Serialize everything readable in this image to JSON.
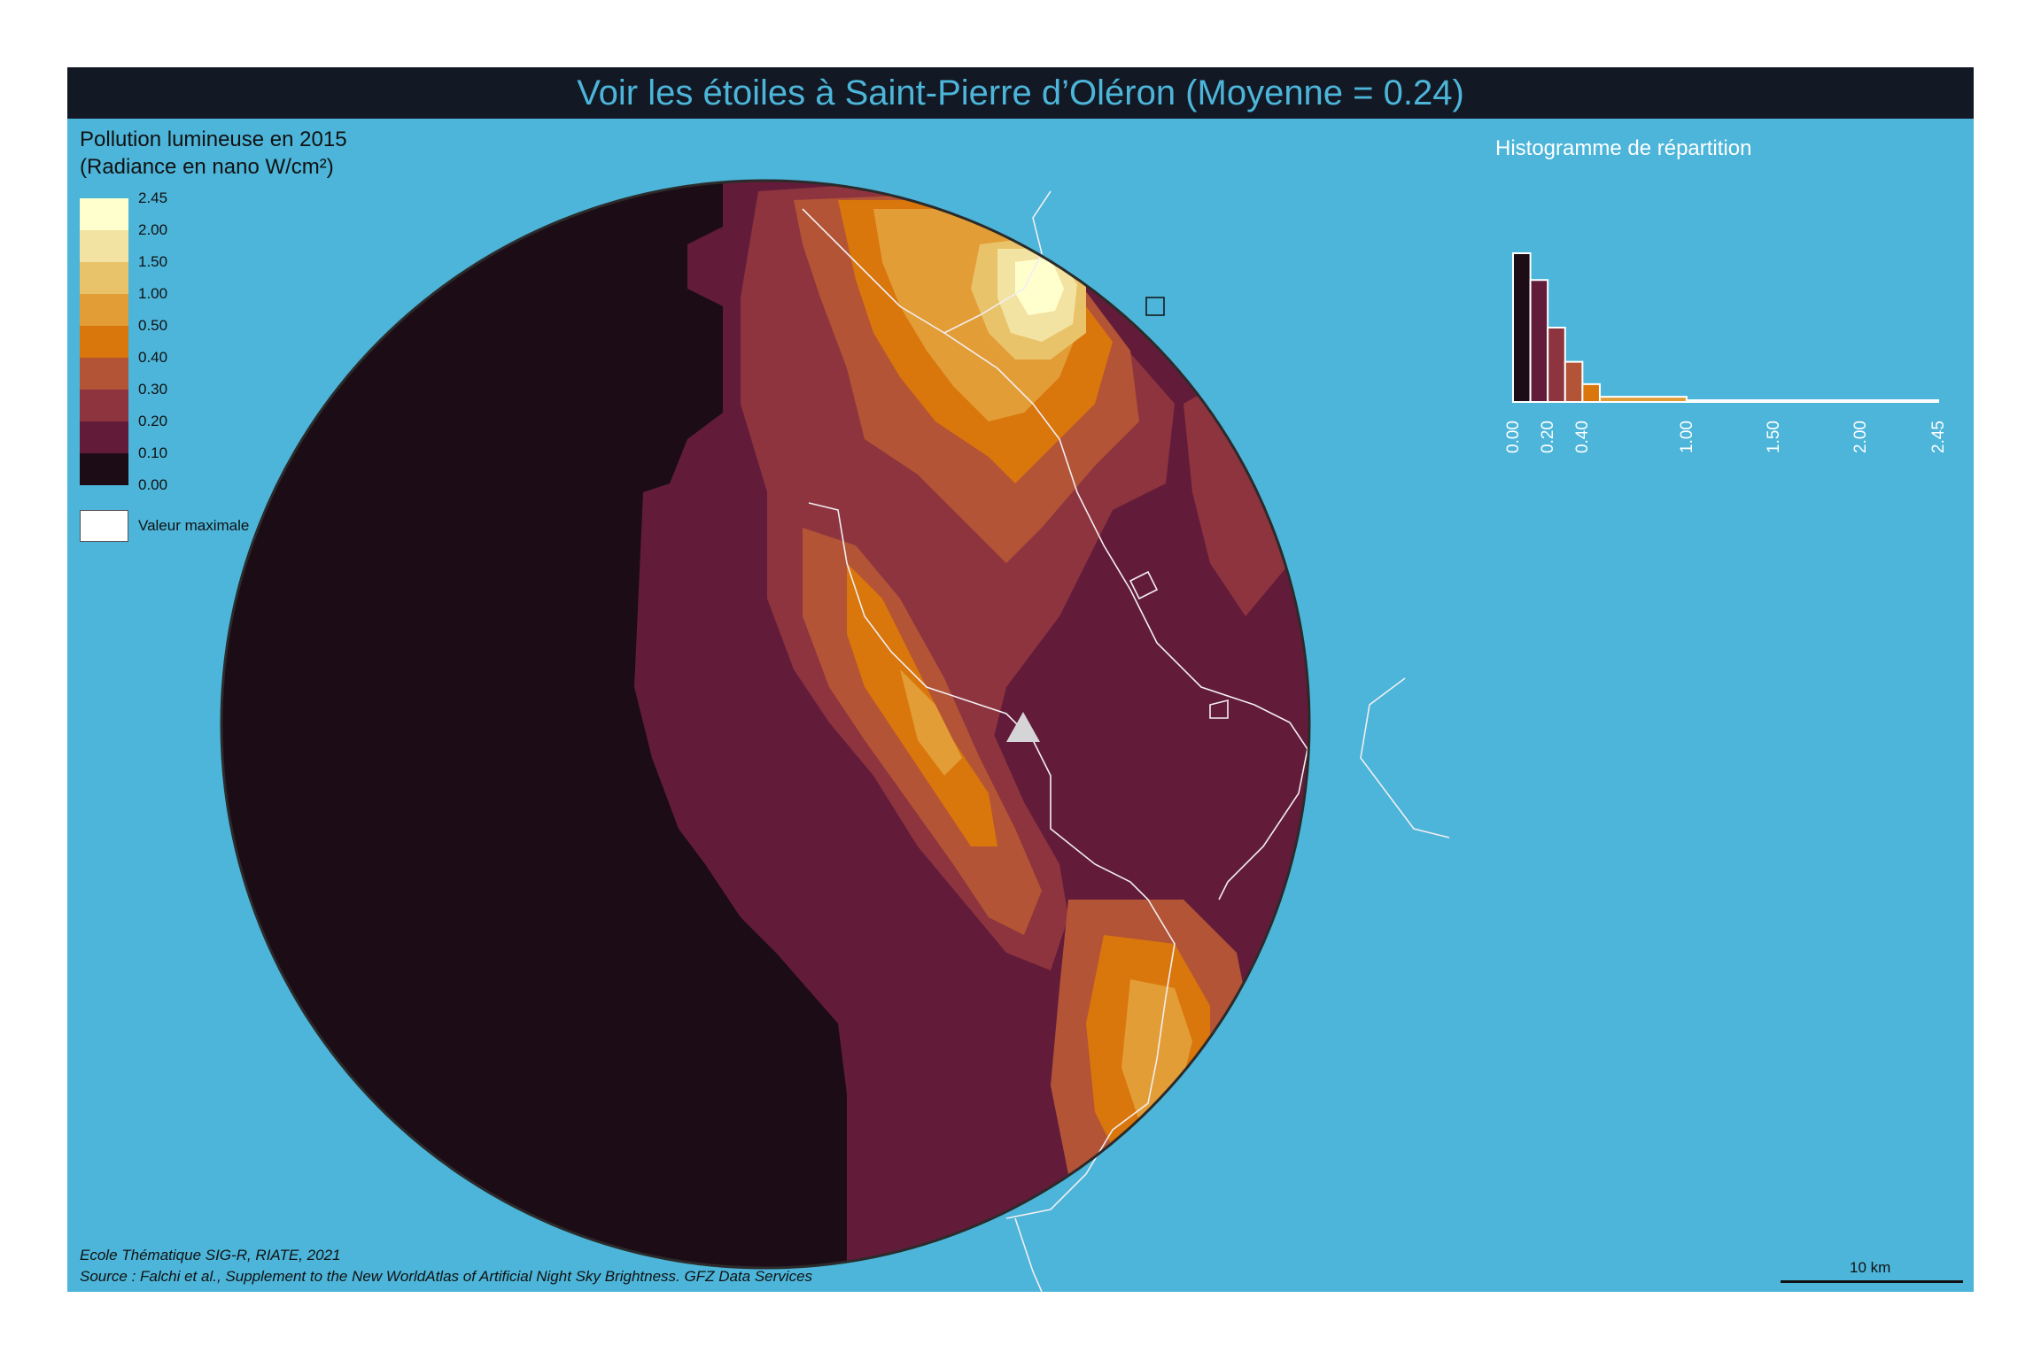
{
  "title": "Voir les étoiles à Saint-Pierre d’Oléron (Moyenne = 0.24)",
  "legend": {
    "title_line1": "Pollution lumineuse en 2015",
    "title_line2": "(Radiance en nano W/cm²)",
    "breaks": [
      "2.45",
      "2.00",
      "1.50",
      "1.00",
      "0.50",
      "0.40",
      "0.30",
      "0.20",
      "0.10",
      "0.00"
    ],
    "colors": [
      "#ffffce",
      "#f3e3a3",
      "#e9c36a",
      "#e39d36",
      "#d9760c",
      "#b35436",
      "#8e343f",
      "#621c3a",
      "#1c0c15"
    ],
    "max_label": "Valeur maximale"
  },
  "histogram": {
    "title": "Histogramme de répartition",
    "ticks": [
      "0.00",
      "0.20",
      "0.40",
      "1.00",
      "1.50",
      "2.00",
      "2.45"
    ],
    "bins": [
      {
        "from": 0.0,
        "to": 0.1,
        "density": 1.0
      },
      {
        "from": 0.1,
        "to": 0.2,
        "density": 0.82
      },
      {
        "from": 0.2,
        "to": 0.3,
        "density": 0.5
      },
      {
        "from": 0.3,
        "to": 0.4,
        "density": 0.27
      },
      {
        "from": 0.4,
        "to": 0.5,
        "density": 0.12
      },
      {
        "from": 0.5,
        "to": 1.0,
        "density": 0.035
      },
      {
        "from": 1.0,
        "to": 1.5,
        "density": 0.006
      },
      {
        "from": 1.5,
        "to": 2.0,
        "density": 0.003
      },
      {
        "from": 2.0,
        "to": 2.45,
        "density": 0.002
      }
    ]
  },
  "colors": {
    "sea": "#4cb5d9",
    "title_bar": "#121824",
    "coast": "#f2eef2",
    "outline": "#2b2b2b"
  },
  "credits": {
    "line1": "Ecole Thématique SIG-R, RIATE, 2021",
    "line2": "Source : Falchi et al., Supplement to the New WorldAtlas of Artificial Night Sky Brightness. GFZ Data Services"
  },
  "scale": {
    "label": "10 km"
  }
}
